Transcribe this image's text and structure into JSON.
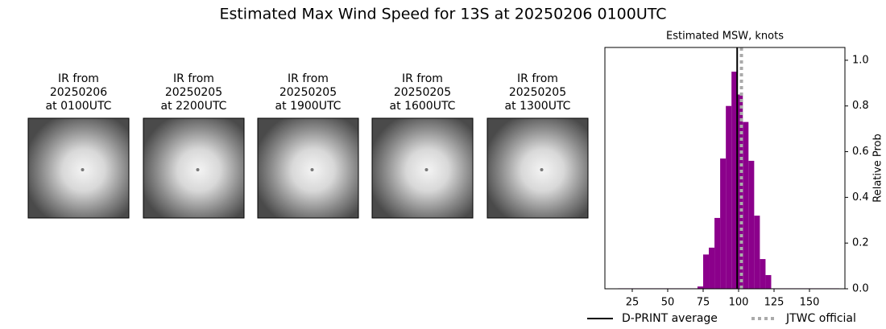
{
  "title": "Estimated Max Wind Speed for 13S at 20250206 0100UTC",
  "panels": [
    {
      "label_lines": [
        "IR from",
        "20250206",
        "at 0100UTC"
      ]
    },
    {
      "label_lines": [
        "IR from",
        "20250205",
        "at 2200UTC"
      ]
    },
    {
      "label_lines": [
        "IR from",
        "20250205",
        "at 1900UTC"
      ]
    },
    {
      "label_lines": [
        "IR from",
        "20250205",
        "at 1600UTC"
      ]
    },
    {
      "label_lines": [
        "IR from",
        "20250205",
        "at 1300UTC"
      ]
    }
  ],
  "chart_data": {
    "type": "histogram",
    "title": "Estimated MSW, knots",
    "ylabel": "Relative Prob",
    "color": "#8b008b",
    "bins": [
      15,
      19,
      23,
      27,
      31,
      35,
      39,
      43,
      47,
      51,
      55,
      59,
      63,
      67,
      71,
      75,
      79,
      83,
      87,
      91,
      95,
      99,
      103,
      107,
      111,
      115,
      119,
      123,
      127,
      131,
      135,
      139,
      143,
      147,
      151,
      155,
      159,
      163,
      167,
      171
    ],
    "values": [
      0.002,
      0.002,
      0.002,
      0.002,
      0.002,
      0.002,
      0.002,
      0.002,
      0.002,
      0.002,
      0.002,
      0.002,
      0.002,
      0.002,
      0.01,
      0.15,
      0.18,
      0.31,
      0.57,
      0.8,
      0.95,
      0.85,
      0.73,
      0.56,
      0.32,
      0.13,
      0.06,
      0.002,
      0.002,
      0.002,
      0.002,
      0.002,
      0.002,
      0.002,
      0.002,
      0.002,
      0.002,
      0.002,
      0.002
    ],
    "xlim": [
      5.7,
      175
    ],
    "xticks": [
      25,
      50,
      75,
      100,
      125,
      150
    ],
    "ylim": [
      0,
      1.056
    ],
    "yticks": [
      {
        "value": 0,
        "label": "0.0"
      },
      0.2,
      0.4,
      0.6,
      0.8,
      {
        "value": 1,
        "label": "1.0"
      }
    ],
    "y_axis_side": "right",
    "reference_lines": [
      {
        "name": "D-PRINT average",
        "value": 99,
        "color": "#000000",
        "style": "solid"
      },
      {
        "name": "JTWC official",
        "value": 102,
        "color": "#aaaaaa",
        "style": "dotted"
      }
    ]
  }
}
